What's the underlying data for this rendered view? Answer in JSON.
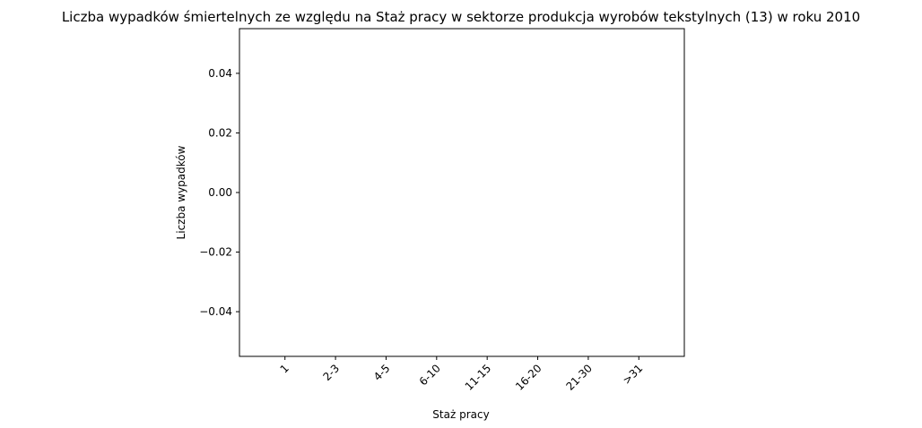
{
  "chart_data": {
    "type": "bar",
    "title": "Liczba wypadków śmiertelnych ze względu na Staż pracy w sektorze produkcja wyrobów tekstylnych  (13)   w roku 2010",
    "xlabel": "Staż pracy",
    "ylabel": "Liczba wypadków",
    "categories": [
      "1",
      "2-3",
      "4-5",
      "6-10",
      "11-15",
      "16-20",
      "21-30",
      ">31"
    ],
    "values": [
      0,
      0,
      0,
      0,
      0,
      0,
      0,
      0
    ],
    "ylim": [
      -0.055,
      0.055
    ],
    "yticks": [
      0.04,
      0.02,
      0.0,
      -0.02,
      -0.04
    ],
    "ytick_labels": [
      "0.04",
      "0.02",
      "0.00",
      "−0.02",
      "−0.04"
    ],
    "grid": false,
    "legend": "none"
  }
}
